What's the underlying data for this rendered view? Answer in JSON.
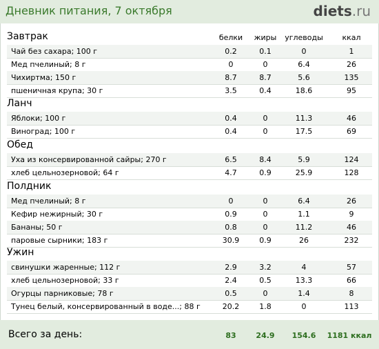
{
  "header": {
    "title": "Дневник питания, 7 октября",
    "logo_main": "diets",
    "logo_tld": ".ru"
  },
  "columns": [
    "белки",
    "жиры",
    "углеводы",
    "ккал"
  ],
  "meals": [
    {
      "name": "Завтрак",
      "items": [
        {
          "name": "Чай без сахара; 100 г",
          "v": [
            "0.2",
            "0.1",
            "0",
            "1"
          ]
        },
        {
          "name": "Мед пчелиный; 8 г",
          "v": [
            "0",
            "0",
            "6.4",
            "26"
          ]
        },
        {
          "name": "Чихиртма; 150 г",
          "v": [
            "8.7",
            "8.7",
            "5.6",
            "135"
          ]
        },
        {
          "name": "пшеничная крупа; 30 г",
          "v": [
            "3.5",
            "0.4",
            "18.6",
            "95"
          ]
        }
      ]
    },
    {
      "name": "Ланч",
      "items": [
        {
          "name": "Яблоки; 100 г",
          "v": [
            "0.4",
            "0",
            "11.3",
            "46"
          ]
        },
        {
          "name": "Виноград; 100 г",
          "v": [
            "0.4",
            "0",
            "17.5",
            "69"
          ]
        }
      ]
    },
    {
      "name": "Обед",
      "items": [
        {
          "name": "Уха из консервированной сайры; 270 г",
          "v": [
            "6.5",
            "8.4",
            "5.9",
            "124"
          ]
        },
        {
          "name": "хлеб цельнозерновой; 64 г",
          "v": [
            "4.7",
            "0.9",
            "25.9",
            "128"
          ]
        }
      ]
    },
    {
      "name": "Полдник",
      "items": [
        {
          "name": "Мед пчелиный; 8 г",
          "v": [
            "0",
            "0",
            "6.4",
            "26"
          ]
        },
        {
          "name": "Кефир нежирный; 30 г",
          "v": [
            "0.9",
            "0",
            "1.1",
            "9"
          ]
        },
        {
          "name": "Бананы; 50 г",
          "v": [
            "0.8",
            "0",
            "11.2",
            "46"
          ]
        },
        {
          "name": "паровые сырники; 183 г",
          "v": [
            "30.9",
            "0.9",
            "26",
            "232"
          ]
        }
      ]
    },
    {
      "name": "Ужин",
      "items": [
        {
          "name": "свинушки жаренные; 112 г",
          "v": [
            "2.9",
            "3.2",
            "4",
            "57"
          ]
        },
        {
          "name": "хлеб цельнозерновой; 33 г",
          "v": [
            "2.4",
            "0.5",
            "13.3",
            "66"
          ]
        },
        {
          "name": "Огурцы парниковые; 78 г",
          "v": [
            "0.5",
            "0",
            "1.4",
            "8"
          ]
        },
        {
          "name": "Тунец белый, консервированный в воде...; 88 г",
          "v": [
            "20.2",
            "1.8",
            "0",
            "113"
          ]
        }
      ]
    }
  ],
  "total": {
    "label": "Всего за день:",
    "v": [
      "83",
      "24.9",
      "154.6",
      "1181 ккал"
    ]
  }
}
